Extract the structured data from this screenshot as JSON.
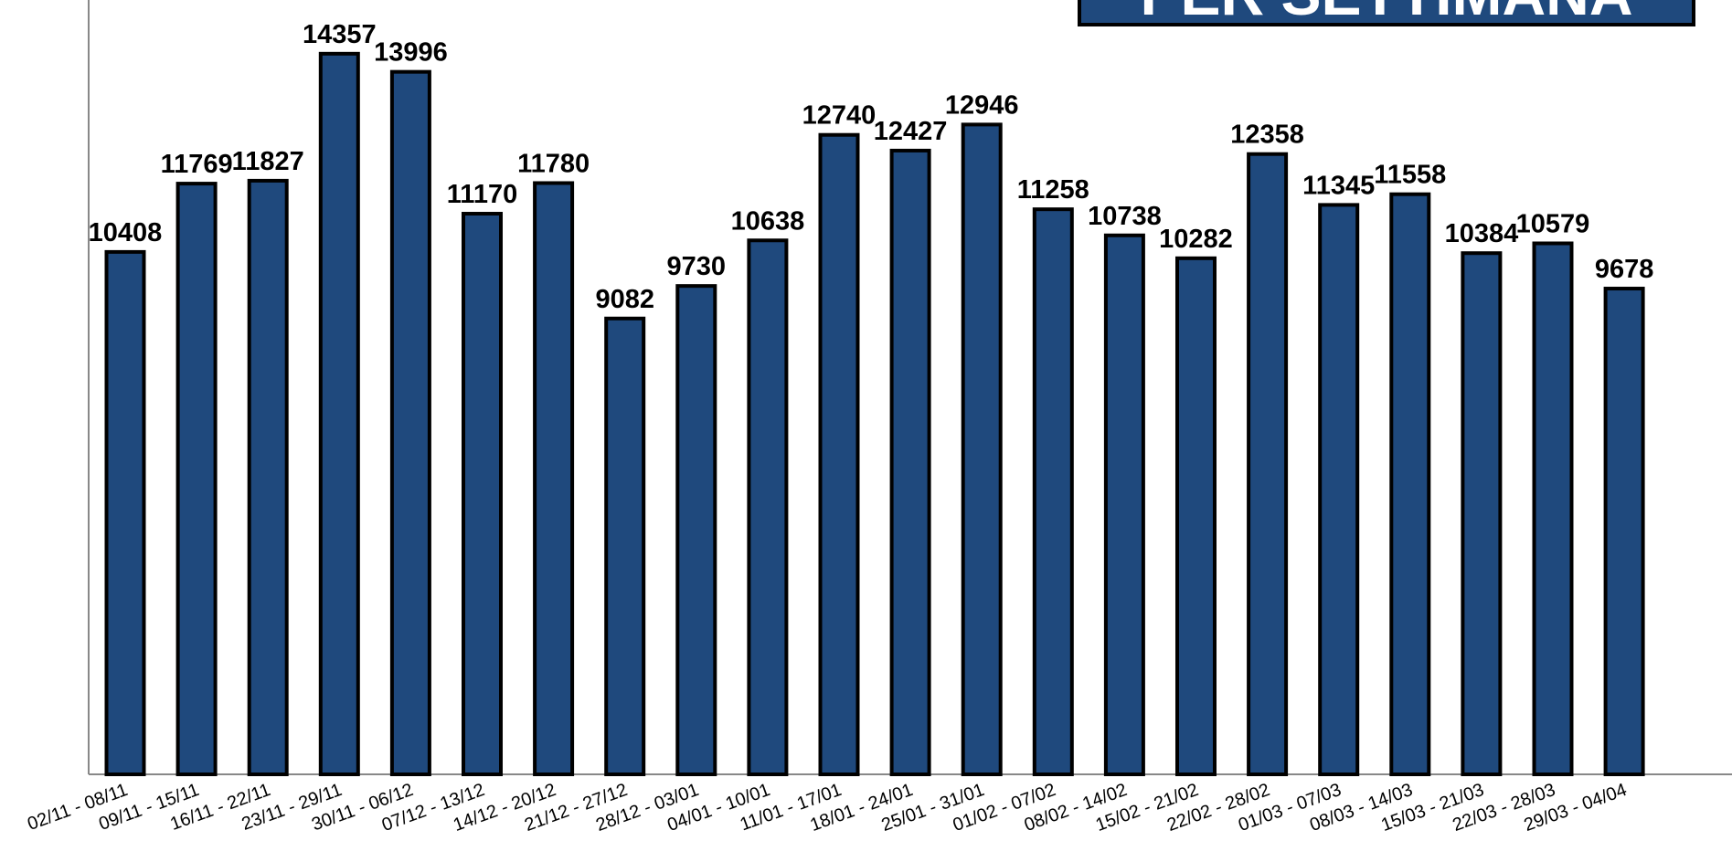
{
  "chart_data": {
    "type": "bar",
    "title": "PER SETTIMANA",
    "categories": [
      "02/11 - 08/11",
      "09/11 - 15/11",
      "16/11 - 22/11",
      "23/11 - 29/11",
      "30/11 - 06/12",
      "07/12 - 13/12",
      "14/12 - 20/12",
      "21/12 - 27/12",
      "28/12 - 03/01",
      "04/01 - 10/01",
      "11/01 - 17/01",
      "18/01 - 24/01",
      "25/01 - 31/01",
      "01/02 - 07/02",
      "08/02 - 14/02",
      "15/02 - 21/02",
      "22/02 - 28/02",
      "01/03 - 07/03",
      "08/03 - 14/03",
      "15/03 - 21/03",
      "22/03 - 28/03",
      "29/03 - 04/04"
    ],
    "values": [
      10408,
      11769,
      11827,
      14357,
      13996,
      11170,
      11780,
      9082,
      9730,
      10638,
      12740,
      12427,
      12946,
      11258,
      10738,
      10282,
      12358,
      11345,
      11558,
      10384,
      10579,
      9678
    ],
    "color": "#1f497d",
    "ylim": [
      0,
      15500
    ]
  }
}
